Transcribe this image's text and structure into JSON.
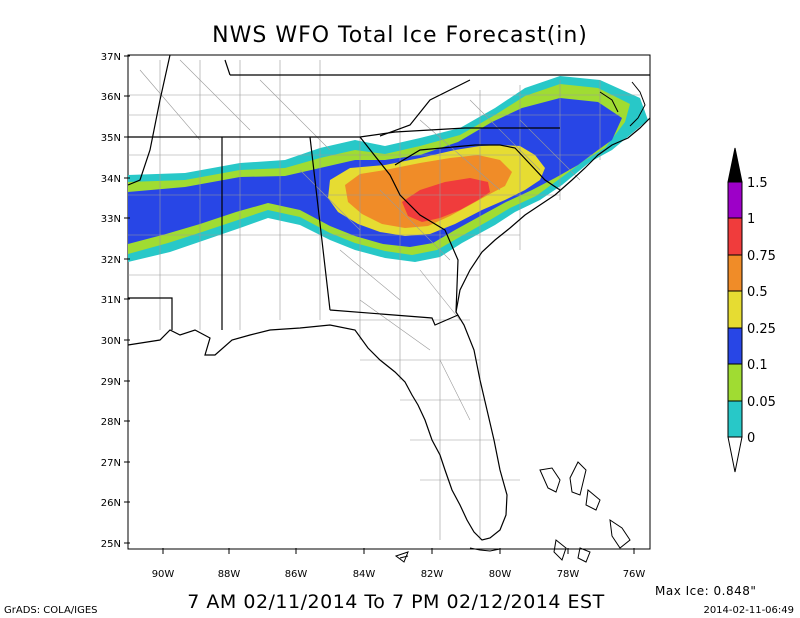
{
  "title": "NWS WFO Total Ice Forecast(in)",
  "valid_period": "7 AM 02/11/2014 To 7 PM 02/12/2014 EST",
  "credit": "GrADS: COLA/IGES",
  "max_ice": "Max Ice: 0.848\"",
  "run_time": "2014-02-11-06:49",
  "lat_labels": [
    "37N",
    "36N",
    "35N",
    "34N",
    "33N",
    "32N",
    "31N",
    "30N",
    "29N",
    "28N",
    "27N",
    "26N",
    "25N"
  ],
  "lon_labels": [
    "90W",
    "88W",
    "86W",
    "84W",
    "82W",
    "80W",
    "78W",
    "76W"
  ],
  "colorbar": {
    "labels": [
      "1.5",
      "1",
      "0.75",
      "0.5",
      "0.25",
      "0.1",
      "0.05",
      "0"
    ],
    "colors": [
      "#9d00c8",
      "#f03c3c",
      "#f08c28",
      "#e6dc32",
      "#2846e6",
      "#a0dc32",
      "#28c8c8"
    ],
    "top_color": "#000000",
    "bottom_color": "#ffffff"
  }
}
